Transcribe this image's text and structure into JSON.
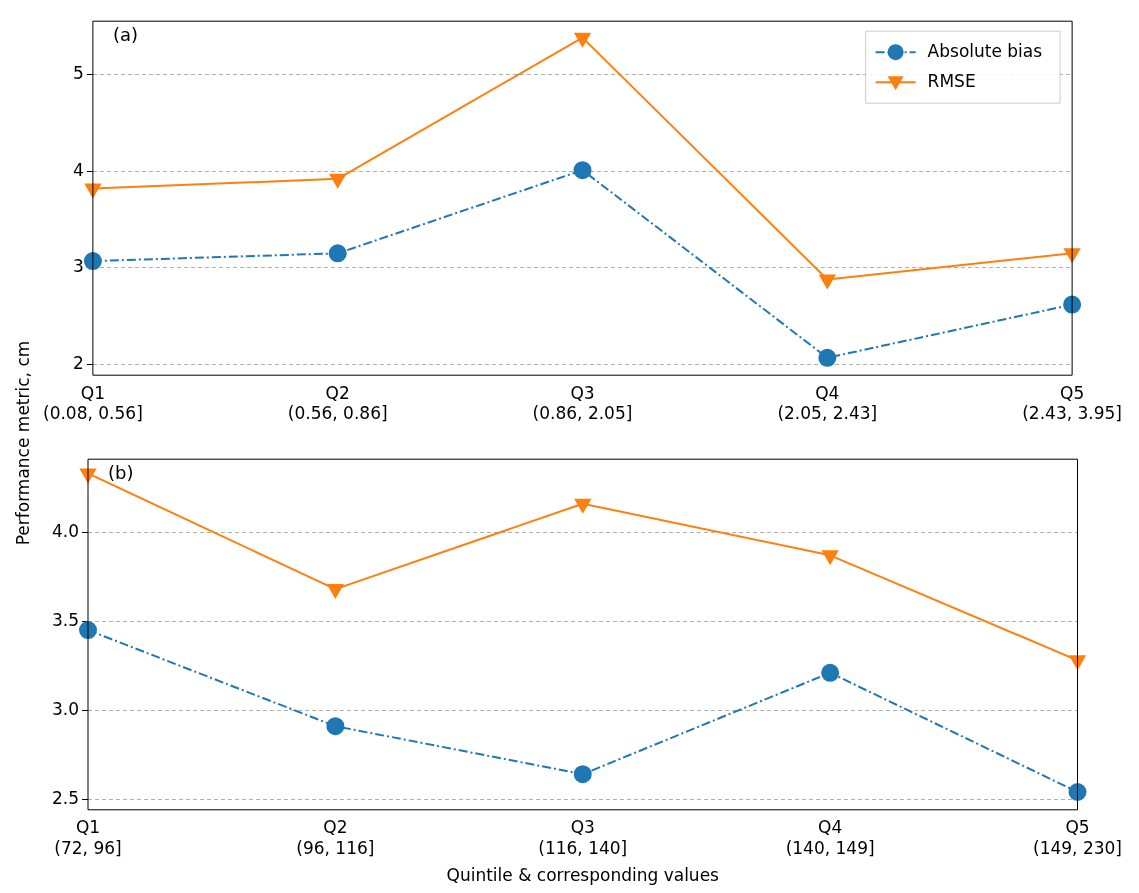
{
  "chart_data": [
    {
      "type": "line",
      "ylabel": "Performance metric, cm",
      "annotations": [
        "(a)"
      ],
      "categories": [
        "Q1\n(0.08, 0.56]",
        "Q2\n(0.56, 0.86]",
        "Q3\n(0.86, 2.05]",
        "Q4\n(2.05, 2.43]",
        "Q5\n(2.43, 3.95]"
      ],
      "series": [
        {
          "name": "Absolute bias",
          "color": "#1f77b4",
          "marker": "circle",
          "line_style": "dashdot",
          "values": [
            3.07,
            3.15,
            4.01,
            2.07,
            2.62
          ]
        },
        {
          "name": "RMSE",
          "color": "#ff7f0e",
          "marker": "triangle",
          "line_style": "solid",
          "values": [
            3.82,
            3.92,
            5.38,
            2.88,
            3.15
          ]
        }
      ],
      "ylim": [
        1.89,
        5.55
      ],
      "yticks": [
        2,
        3,
        4,
        5
      ],
      "grid": "y",
      "legend": "top right"
    },
    {
      "type": "line",
      "xlabel": "Quintile & corresponding values",
      "annotations": [
        "(b)"
      ],
      "categories": [
        "Q1\n(72, 96]",
        "Q2\n(96, 116]",
        "Q3\n(116, 140]",
        "Q4\n(140, 149]",
        "Q5\n(149, 230]"
      ],
      "series": [
        {
          "color": "#1f77b4",
          "marker": "circle",
          "line_style": "dashdot",
          "values": [
            3.45,
            2.91,
            2.64,
            3.21,
            2.54
          ]
        },
        {
          "color": "#ff7f0e",
          "marker": "triangle",
          "line_style": "solid",
          "values": [
            4.33,
            3.68,
            4.16,
            3.87,
            3.28
          ]
        }
      ],
      "ylim": [
        2.44,
        4.41
      ],
      "yticks": [
        {
          "value": 2.5,
          "label": "2.5"
        },
        {
          "value": 3,
          "label": "3.0"
        },
        {
          "value": 3.5,
          "label": "3.5"
        },
        {
          "value": 4,
          "label": "4.0"
        }
      ],
      "grid": "y",
      "legend": false
    }
  ]
}
